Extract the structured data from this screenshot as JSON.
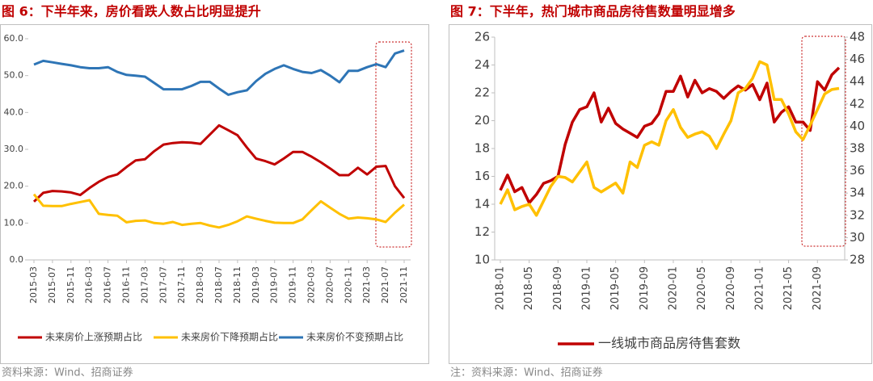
{
  "chart_data": [
    {
      "type": "line",
      "title": "图 6：下半年来，房价看跌人数占比明显提升",
      "note": "资料来源：Wind、招商证券",
      "categories": [
        "2015-03",
        null,
        "2015-07",
        null,
        "2015-11",
        null,
        "2016-03",
        null,
        "2016-07",
        null,
        "2016-11",
        null,
        "2017-03",
        null,
        "2017-07",
        null,
        "2017-11",
        null,
        "2018-03",
        null,
        "2018-07",
        null,
        "2018-11",
        null,
        "2019-03",
        null,
        "2019-07",
        null,
        "2019-11",
        null,
        "2020-03",
        null,
        "2020-07",
        null,
        "2020-11",
        null,
        "2021-03",
        null,
        "2021-07",
        null,
        "2021-11"
      ],
      "series": [
        {
          "name": "未来房价上涨预期占比",
          "color": "#c00000",
          "values": [
            15.8,
            18.2,
            18.7,
            18.6,
            18.3,
            17.6,
            19.5,
            21.2,
            22.5,
            23.2,
            25.2,
            27.0,
            27.3,
            29.5,
            31.3,
            31.7,
            31.9,
            31.8,
            31.5,
            34.0,
            36.5,
            35.2,
            33.8,
            30.5,
            27.5,
            26.8,
            25.9,
            27.5,
            29.3,
            29.3,
            28.0,
            26.5,
            24.8,
            23.0,
            23.0,
            25.0,
            23.2,
            25.3,
            25.5,
            20.0,
            16.8
          ]
        },
        {
          "name": "未来房价下降预期占比",
          "color": "#ffc000",
          "values": [
            17.8,
            14.7,
            14.6,
            14.6,
            15.2,
            15.7,
            16.2,
            12.5,
            12.2,
            12.0,
            10.2,
            10.6,
            10.7,
            10.0,
            9.8,
            10.3,
            9.5,
            9.8,
            10.0,
            9.3,
            8.8,
            9.5,
            10.5,
            11.8,
            11.2,
            10.6,
            10.1,
            10.0,
            10.0,
            11.0,
            13.5,
            15.9,
            14.2,
            12.5,
            11.2,
            11.5,
            11.3,
            11.0,
            10.3,
            12.8,
            15.0
          ]
        },
        {
          "name": "未来房价不变预期占比",
          "color": "#2e75b6",
          "values": [
            53.0,
            54.0,
            53.6,
            53.2,
            52.8,
            52.3,
            52.0,
            52.0,
            52.3,
            51.0,
            50.2,
            50.0,
            49.7,
            48.0,
            46.3,
            46.3,
            46.3,
            47.2,
            48.3,
            48.3,
            46.5,
            44.8,
            45.5,
            46.0,
            48.5,
            50.5,
            51.8,
            52.8,
            51.8,
            51.0,
            50.7,
            51.5,
            50.0,
            48.2,
            51.3,
            51.3,
            52.3,
            53.1,
            52.3,
            56.0,
            56.8
          ]
        }
      ],
      "ylim": [
        0,
        60
      ],
      "yticks": [
        {
          "value": 0,
          "label": "0.0"
        },
        {
          "value": 10,
          "label": "10.0"
        },
        {
          "value": 20,
          "label": "20.0"
        },
        {
          "value": 30,
          "label": "30.0"
        },
        {
          "value": 40,
          "label": "40.0"
        },
        {
          "value": 50,
          "label": "50.0"
        },
        {
          "value": 60,
          "label": "60.0"
        }
      ],
      "grid": false,
      "legend": "bottom"
    },
    {
      "type": "line",
      "title": "图 7：下半年，热门城市商品房待售数量明显增多",
      "note": "注：资料来源：Wind、招商证券",
      "categories": [
        "2018-01",
        null,
        null,
        null,
        "2018-05",
        null,
        null,
        null,
        "2018-09",
        null,
        null,
        null,
        "2019-01",
        null,
        null,
        null,
        "2019-05",
        null,
        null,
        null,
        "2019-09",
        null,
        null,
        null,
        "2020-01",
        null,
        null,
        null,
        "2020-05",
        null,
        null,
        null,
        "2020-09",
        null,
        null,
        null,
        "2021-01",
        null,
        null,
        null,
        "2021-05",
        null,
        null,
        null,
        "2021-09",
        null,
        null,
        null
      ],
      "series": [
        {
          "name": "一线城市商品房待售套数",
          "color": "#c00000",
          "values": [
            15.0,
            16.1,
            14.9,
            15.2,
            14.1,
            14.7,
            15.5,
            15.7,
            16.0,
            18.3,
            19.9,
            20.8,
            21.0,
            22.0,
            19.9,
            20.9,
            19.8,
            19.4,
            19.1,
            18.8,
            19.6,
            19.8,
            20.5,
            22.1,
            22.1,
            23.2,
            21.7,
            22.9,
            22.0,
            22.3,
            22.1,
            21.6,
            22.1,
            22.5,
            22.2,
            22.6,
            21.5,
            22.7,
            19.9,
            20.6,
            21.0,
            19.9,
            19.9,
            19.3,
            22.8,
            22.2,
            23.3,
            23.8
          ]
        },
        {
          "color": "#ffc000",
          "axis": "y2",
          "values": [
            33.0,
            34.3,
            32.5,
            32.8,
            33.0,
            32.0,
            33.3,
            34.6,
            35.5,
            35.4,
            35.0,
            35.9,
            36.8,
            34.5,
            34.1,
            34.5,
            34.9,
            34.0,
            36.8,
            36.3,
            38.3,
            38.6,
            38.3,
            40.5,
            41.5,
            39.9,
            39.0,
            39.3,
            39.5,
            39.1,
            38.0,
            39.3,
            40.5,
            43.0,
            43.4,
            44.3,
            45.8,
            45.5,
            42.4,
            42.4,
            41.1,
            39.5,
            38.8,
            40.1,
            41.5,
            42.9,
            43.3,
            43.4
          ]
        }
      ],
      "ylim": [
        10,
        26
      ],
      "yticks": [
        10,
        12,
        14,
        16,
        18,
        20,
        22,
        24,
        26
      ],
      "y2lim": [
        28,
        48
      ],
      "y2ticks": [
        28,
        30,
        32,
        34,
        36,
        38,
        40,
        42,
        44,
        46,
        48
      ],
      "grid": false,
      "legend": "bottom"
    }
  ]
}
